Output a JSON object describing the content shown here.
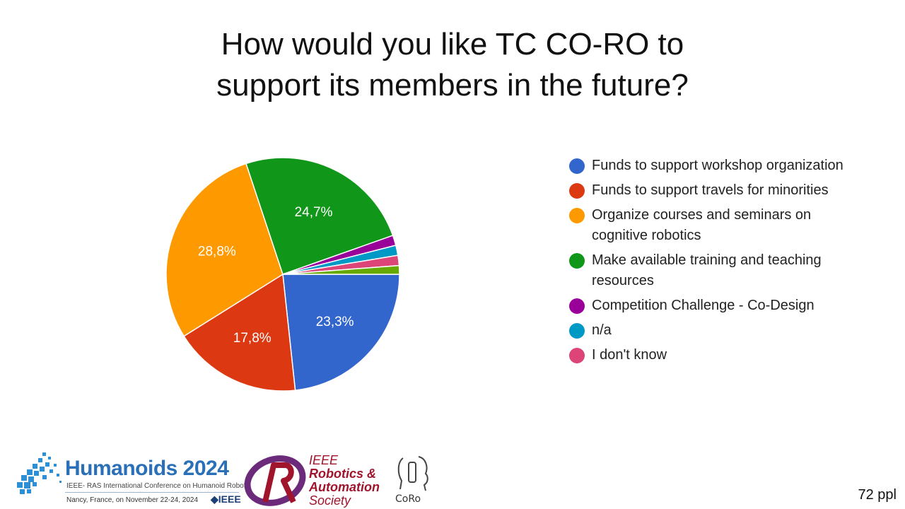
{
  "title_lines": [
    "How would you like TC CO-RO to",
    "support its members in the future?"
  ],
  "chart_data": {
    "type": "pie",
    "title": "How would you like TC CO-RO to support its members in the future?",
    "slices": [
      {
        "name": "Funds to support workshop organization",
        "value": 23.3,
        "label": "23,3%",
        "color": "#3366cc"
      },
      {
        "name": "Funds to support travels for minorities",
        "value": 17.8,
        "label": "17,8%",
        "color": "#dc3912"
      },
      {
        "name": "Organize courses and seminars on cognitive robotics",
        "value": 28.8,
        "label": "28,8%",
        "color": "#ff9900"
      },
      {
        "name": "Make available training and teaching resources",
        "value": 24.7,
        "label": "24,7%",
        "color": "#109618"
      },
      {
        "name": "Competition Challenge - Co-Design",
        "value": 1.4,
        "label": "",
        "color": "#990099"
      },
      {
        "name": "n/a",
        "value": 1.4,
        "label": "",
        "color": "#0099c6"
      },
      {
        "name": "I don't know",
        "value": 1.4,
        "label": "",
        "color": "#dd4477"
      },
      {
        "name": "",
        "value": 1.2,
        "label": "",
        "color": "#66aa00"
      }
    ],
    "legend_placement": "right"
  },
  "legend": [
    {
      "label": "Funds to support workshop organization",
      "color": "#3366cc"
    },
    {
      "label": "Funds to support travels for minorities",
      "color": "#dc3912"
    },
    {
      "label": "Organize courses and seminars on\ncognitive robotics",
      "color": "#ff9900"
    },
    {
      "label": "Make available training and teaching\nresources",
      "color": "#109618"
    },
    {
      "label": "Competition Challenge - Co-Design",
      "color": "#990099"
    },
    {
      "label": "n/a",
      "color": "#0099c6"
    },
    {
      "label": "I don't know",
      "color": "#dd4477"
    }
  ],
  "footer": {
    "count": "72 ppl",
    "humanoids_title": "Humanoids 2024",
    "humanoids_subtitle": "IEEE- RAS International Conference on Humanoid Robots",
    "humanoids_place": "Nancy, France, on November 22-24, 2024",
    "humanoids_ieee": "◆IEEE",
    "ras_ieee": "IEEE",
    "ras_line1": "Robotics &",
    "ras_line2": "Automation",
    "ras_line3": "Society",
    "coro": "CoRo"
  }
}
